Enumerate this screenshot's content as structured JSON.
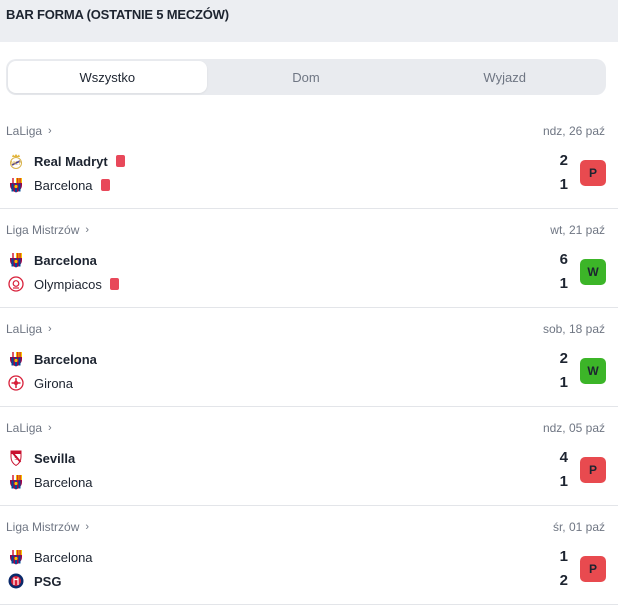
{
  "header": {
    "title": "BAR FORMA (OSTATNIE 5 MECZÓW)"
  },
  "tabs": [
    {
      "label": "Wszystko",
      "active": true
    },
    {
      "label": "Dom",
      "active": false
    },
    {
      "label": "Wyjazd",
      "active": false
    }
  ],
  "colors": {
    "loss": "#e84a4f",
    "win": "#3cb528",
    "red_card": "#e8485a"
  },
  "matches": [
    {
      "league": "LaLiga",
      "date": "ndz, 26 paź",
      "home": {
        "name": "Real Madryt",
        "crest": "real-madrid-crest-icon",
        "bold": true,
        "red_card": true,
        "score": "2"
      },
      "away": {
        "name": "Barcelona",
        "crest": "barcelona-crest-icon",
        "bold": false,
        "red_card": true,
        "score": "1"
      },
      "result": "P",
      "result_type": "loss"
    },
    {
      "league": "Liga Mistrzów",
      "date": "wt, 21 paź",
      "home": {
        "name": "Barcelona",
        "crest": "barcelona-crest-icon",
        "bold": true,
        "red_card": false,
        "score": "6"
      },
      "away": {
        "name": "Olympiacos",
        "crest": "olympiacos-crest-icon",
        "bold": false,
        "red_card": true,
        "score": "1"
      },
      "result": "W",
      "result_type": "win"
    },
    {
      "league": "LaLiga",
      "date": "sob, 18 paź",
      "home": {
        "name": "Barcelona",
        "crest": "barcelona-crest-icon",
        "bold": true,
        "red_card": false,
        "score": "2"
      },
      "away": {
        "name": "Girona",
        "crest": "girona-crest-icon",
        "bold": false,
        "red_card": false,
        "score": "1"
      },
      "result": "W",
      "result_type": "win"
    },
    {
      "league": "LaLiga",
      "date": "ndz, 05 paź",
      "home": {
        "name": "Sevilla",
        "crest": "sevilla-crest-icon",
        "bold": true,
        "red_card": false,
        "score": "4"
      },
      "away": {
        "name": "Barcelona",
        "crest": "barcelona-crest-icon",
        "bold": false,
        "red_card": false,
        "score": "1"
      },
      "result": "P",
      "result_type": "loss"
    },
    {
      "league": "Liga Mistrzów",
      "date": "śr, 01 paź",
      "home": {
        "name": "Barcelona",
        "crest": "barcelona-crest-icon",
        "bold": false,
        "red_card": false,
        "score": "1"
      },
      "away": {
        "name": "PSG",
        "crest": "psg-crest-icon",
        "bold": true,
        "red_card": false,
        "score": "2"
      },
      "result": "P",
      "result_type": "loss"
    }
  ]
}
